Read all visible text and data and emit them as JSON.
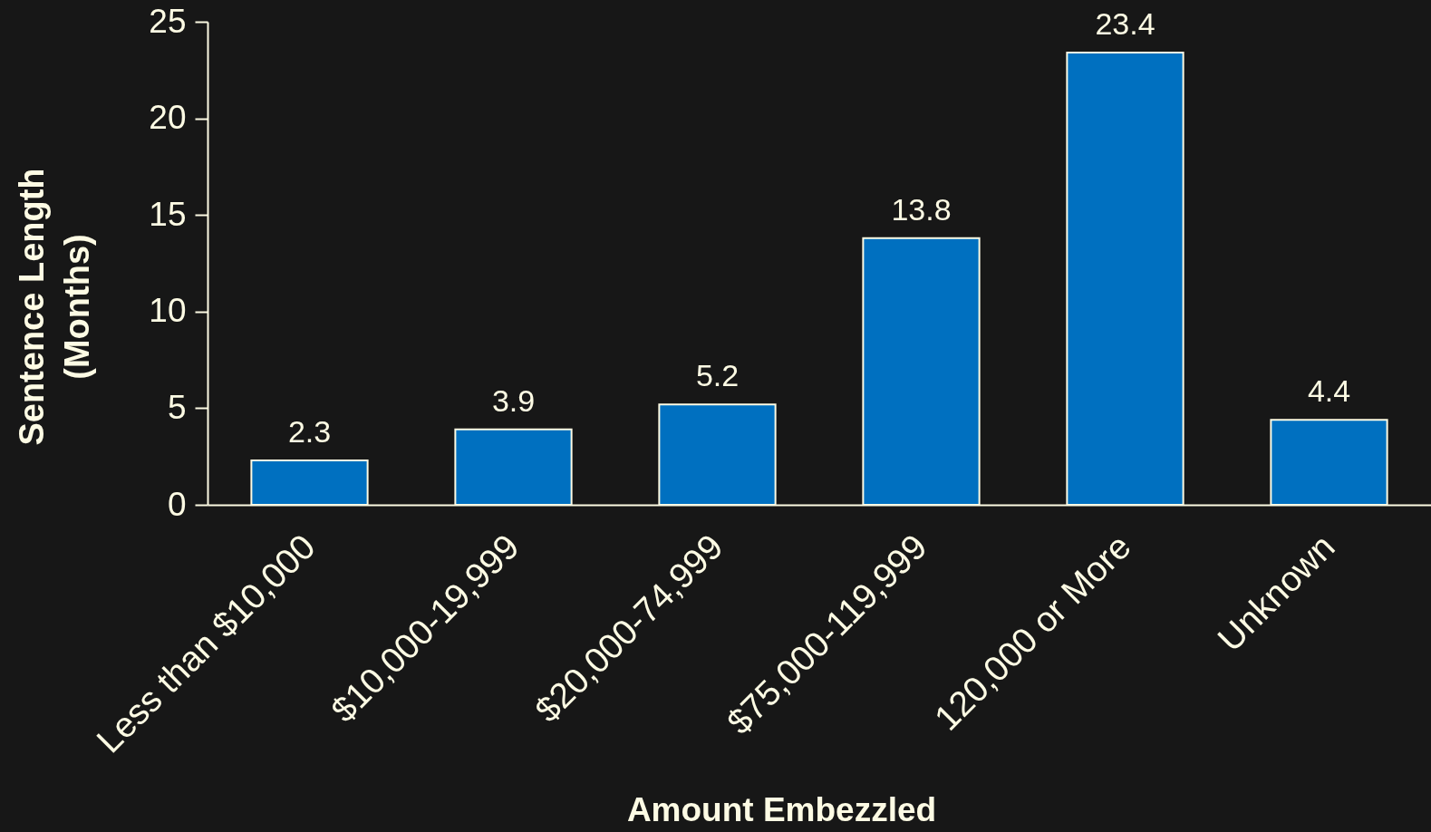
{
  "chart_data": {
    "type": "bar",
    "xlabel": "Amount Embezzled",
    "ylabel": "Sentence Length\n(Months)",
    "categories": [
      "Less than $10,000",
      "$10,000-19,999",
      "$20,000-74,999",
      "$75,000-119,999",
      "120,000 or More",
      "Unknown"
    ],
    "values": [
      2.3,
      3.9,
      5.2,
      13.8,
      23.4,
      4.4
    ],
    "color": "#0070c0",
    "ylim": [
      0,
      25
    ],
    "yticks": [
      0,
      5,
      10,
      15,
      20,
      25
    ],
    "data_labels": true
  }
}
